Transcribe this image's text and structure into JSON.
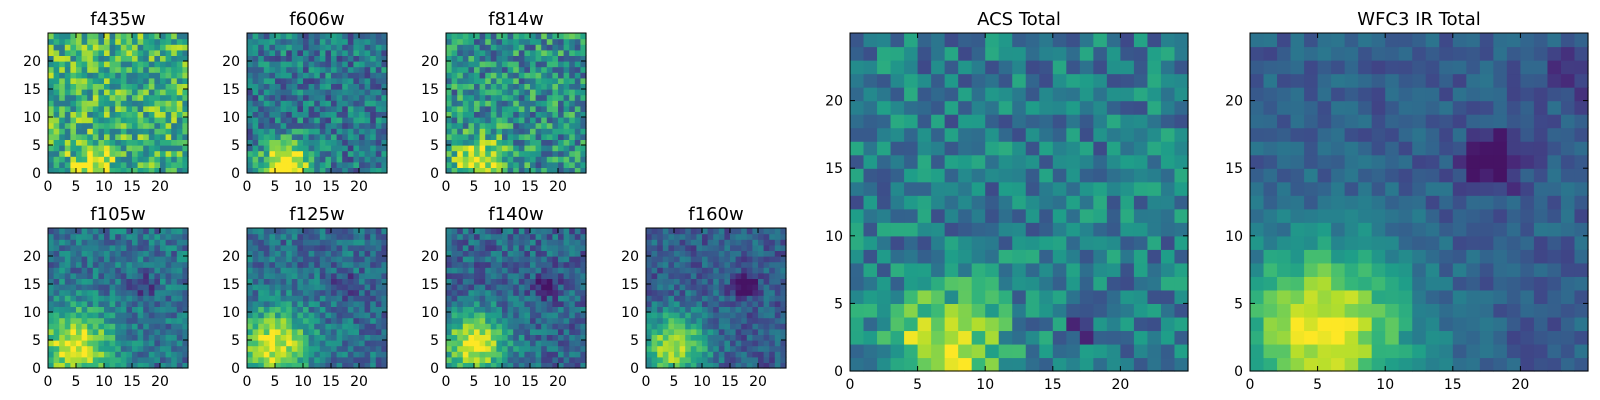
{
  "figure": {
    "cmap": "viridis",
    "value_range": [
      0,
      1
    ]
  },
  "chart_data": [
    {
      "type": "heatmap",
      "name": "f435w",
      "title": "f435w",
      "xlim": [
        0,
        25
      ],
      "ylim": [
        0,
        25
      ],
      "xticks": [
        0,
        5,
        10,
        15,
        20
      ],
      "yticks": [
        0,
        5,
        10,
        15,
        20
      ],
      "grid": 25,
      "seed": 11,
      "noise": 0.6,
      "base": 0.62,
      "lo": 0.4,
      "blobs": [
        {
          "x": 8,
          "y": 1,
          "amp": 0.45,
          "sigma": 2.5
        }
      ],
      "dark_spots": [
        {
          "x": 14,
          "y": 2,
          "amp": 0.6,
          "sigma": 0.5
        }
      ]
    },
    {
      "type": "heatmap",
      "name": "f606w",
      "title": "f606w",
      "xlim": [
        0,
        25
      ],
      "ylim": [
        0,
        25
      ],
      "xticks": [
        0,
        5,
        10,
        15,
        20
      ],
      "yticks": [
        0,
        5,
        10,
        15,
        20
      ],
      "grid": 25,
      "seed": 23,
      "noise": 0.45,
      "base": 0.4,
      "lo": 0.1,
      "blobs": [
        {
          "x": 7,
          "y": 1,
          "amp": 0.75,
          "sigma": 3.2
        }
      ],
      "dark_spots": []
    },
    {
      "type": "heatmap",
      "name": "f814w",
      "title": "f814w",
      "xlim": [
        0,
        25
      ],
      "ylim": [
        0,
        25
      ],
      "xticks": [
        0,
        5,
        10,
        15,
        20
      ],
      "yticks": [
        0,
        5,
        10,
        15,
        20
      ],
      "grid": 25,
      "seed": 37,
      "noise": 0.55,
      "base": 0.5,
      "lo": 0.15,
      "blobs": [
        {
          "x": 6,
          "y": 2,
          "amp": 0.55,
          "sigma": 3.0
        }
      ],
      "dark_spots": []
    },
    {
      "type": "heatmap",
      "name": "f105w",
      "title": "f105w",
      "xlim": [
        0,
        25
      ],
      "ylim": [
        0,
        25
      ],
      "xticks": [
        0,
        5,
        10,
        15,
        20
      ],
      "yticks": [
        0,
        5,
        10,
        15,
        20
      ],
      "grid": 25,
      "seed": 41,
      "noise": 0.35,
      "base": 0.38,
      "lo": 0.1,
      "blobs": [
        {
          "x": 5,
          "y": 4,
          "amp": 0.6,
          "sigma": 4.5
        }
      ],
      "dark_spots": [
        {
          "x": 17,
          "y": 15,
          "amp": 0.25,
          "sigma": 1.5
        }
      ]
    },
    {
      "type": "heatmap",
      "name": "f125w",
      "title": "f125w",
      "xlim": [
        0,
        25
      ],
      "ylim": [
        0,
        25
      ],
      "xticks": [
        0,
        5,
        10,
        15,
        20
      ],
      "yticks": [
        0,
        5,
        10,
        15,
        20
      ],
      "grid": 25,
      "seed": 53,
      "noise": 0.35,
      "base": 0.36,
      "lo": 0.1,
      "blobs": [
        {
          "x": 5,
          "y": 4,
          "amp": 0.6,
          "sigma": 4.5
        }
      ],
      "dark_spots": [
        {
          "x": 17,
          "y": 15,
          "amp": 0.25,
          "sigma": 1.5
        }
      ]
    },
    {
      "type": "heatmap",
      "name": "f140w",
      "title": "f140w",
      "xlim": [
        0,
        25
      ],
      "ylim": [
        0,
        25
      ],
      "xticks": [
        0,
        5,
        10,
        15,
        20
      ],
      "yticks": [
        0,
        5,
        10,
        15,
        20
      ],
      "grid": 25,
      "seed": 67,
      "noise": 0.35,
      "base": 0.33,
      "lo": 0.05,
      "blobs": [
        {
          "x": 5,
          "y": 4,
          "amp": 0.62,
          "sigma": 4.2
        }
      ],
      "dark_spots": [
        {
          "x": 18,
          "y": 15,
          "amp": 0.3,
          "sigma": 1.5
        }
      ]
    },
    {
      "type": "heatmap",
      "name": "f160w",
      "title": "f160w",
      "xlim": [
        0,
        25
      ],
      "ylim": [
        0,
        25
      ],
      "xticks": [
        0,
        5,
        10,
        15,
        20
      ],
      "yticks": [
        0,
        5,
        10,
        15,
        20
      ],
      "grid": 25,
      "seed": 79,
      "noise": 0.3,
      "base": 0.3,
      "lo": 0.05,
      "blobs": [
        {
          "x": 5,
          "y": 4,
          "amp": 0.62,
          "sigma": 4.0
        }
      ],
      "dark_spots": [
        {
          "x": 18,
          "y": 15,
          "amp": 0.35,
          "sigma": 1.6
        }
      ]
    },
    {
      "type": "heatmap",
      "name": "acs-total",
      "title": "ACS Total",
      "xlim": [
        0,
        25
      ],
      "ylim": [
        0,
        25
      ],
      "xticks": [
        0,
        5,
        10,
        15,
        20
      ],
      "yticks": [
        0,
        5,
        10,
        15,
        20
      ],
      "grid": 25,
      "seed": 97,
      "noise": 0.4,
      "base": 0.42,
      "lo": 0.1,
      "blobs": [
        {
          "x": 7,
          "y": 1.5,
          "amp": 0.58,
          "sigma": 3.0
        }
      ],
      "dark_spots": [
        {
          "x": 17,
          "y": 3,
          "amp": 0.4,
          "sigma": 0.6
        },
        {
          "x": 10,
          "y": 12,
          "amp": 0.35,
          "sigma": 0.6
        }
      ]
    },
    {
      "type": "heatmap",
      "name": "wfc3-ir-total",
      "title": "WFC3 IR Total",
      "xlim": [
        0,
        25
      ],
      "ylim": [
        0,
        25
      ],
      "xticks": [
        0,
        5,
        10,
        15,
        20
      ],
      "yticks": [
        0,
        5,
        10,
        15,
        20
      ],
      "grid": 25,
      "seed": 131,
      "noise": 0.2,
      "base": 0.3,
      "lo": 0.05,
      "blobs": [
        {
          "x": 5.5,
          "y": 3,
          "amp": 0.68,
          "sigma": 4.5
        }
      ],
      "dark_spots": [
        {
          "x": 18,
          "y": 15.5,
          "amp": 0.35,
          "sigma": 1.5
        },
        {
          "x": 24,
          "y": 22,
          "amp": 0.2,
          "sigma": 1.2
        }
      ]
    }
  ]
}
